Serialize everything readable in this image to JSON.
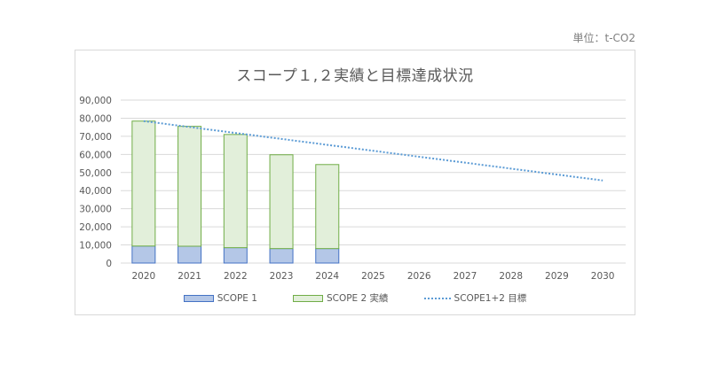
{
  "unit_label": "単位：t-CO2",
  "chart_data": {
    "type": "bar",
    "title": "スコープ１,２実績と目標達成状況",
    "xlabel": "",
    "ylabel": "",
    "ylim": [
      0,
      90000
    ],
    "yticks": [
      "0",
      "10,000",
      "20,000",
      "30,000",
      "40,000",
      "50,000",
      "60,000",
      "70,000",
      "80,000",
      "90,000"
    ],
    "grid": true,
    "legend_position": "bottom",
    "categories": [
      "2020",
      "2021",
      "2022",
      "2023",
      "2024",
      "2025",
      "2026",
      "2027",
      "2028",
      "2029",
      "2030"
    ],
    "series": [
      {
        "name": "SCOPE 1",
        "kind": "stacked-bar",
        "color": "#b4c7e7",
        "border": "#4472c4",
        "values": [
          9400,
          9300,
          8500,
          8000,
          8000,
          null,
          null,
          null,
          null,
          null,
          null
        ]
      },
      {
        "name": "SCOPE 2 実績",
        "kind": "stacked-bar",
        "color": "#e2efda",
        "border": "#70ad47",
        "values": [
          69000,
          66200,
          62500,
          51800,
          46400,
          null,
          null,
          null,
          null,
          null,
          null
        ]
      },
      {
        "name": "SCOPE1+2 目標",
        "kind": "line-dotted",
        "color": "#5b9bd5",
        "values": [
          78400,
          75120,
          71840,
          68560,
          65280,
          62000,
          58720,
          55440,
          52160,
          48880,
          45600
        ]
      }
    ]
  },
  "legend": [
    {
      "label": "SCOPE 1"
    },
    {
      "label": "SCOPE 2 実績"
    },
    {
      "label": "SCOPE1+2 目標"
    }
  ]
}
